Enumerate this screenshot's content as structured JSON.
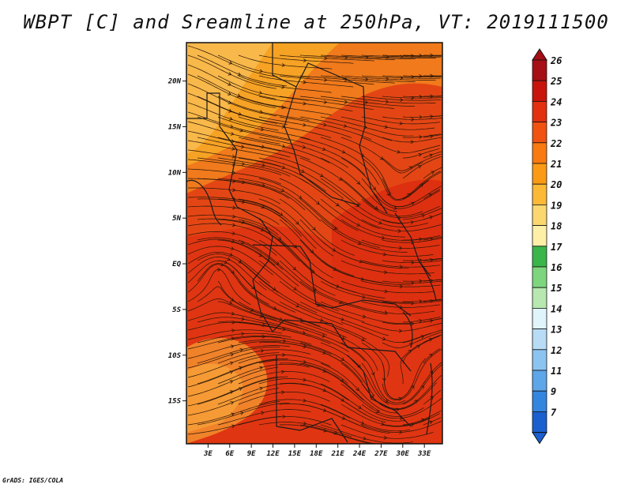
{
  "title": "WBPT [C] and Sreamline at 250hPa, VT: 2019111500",
  "credit": "GrADS: IGES/COLA",
  "map": {
    "lon_range": [
      0,
      35.5
    ],
    "lat_range": [
      -19.7,
      24.2
    ],
    "lat_ticks": [
      {
        "value": 20,
        "label": "20N"
      },
      {
        "value": 15,
        "label": "15N"
      },
      {
        "value": 10,
        "label": "10N"
      },
      {
        "value": 5,
        "label": "5N"
      },
      {
        "value": 0,
        "label": "EQ"
      },
      {
        "value": -5,
        "label": "5S"
      },
      {
        "value": -10,
        "label": "10S"
      },
      {
        "value": -15,
        "label": "15S"
      }
    ],
    "lon_ticks": [
      {
        "value": 3,
        "label": "3E"
      },
      {
        "value": 6,
        "label": "6E"
      },
      {
        "value": 9,
        "label": "9E"
      },
      {
        "value": 12,
        "label": "12E"
      },
      {
        "value": 15,
        "label": "15E"
      },
      {
        "value": 18,
        "label": "18E"
      },
      {
        "value": 21,
        "label": "21E"
      },
      {
        "value": 24,
        "label": "24E"
      },
      {
        "value": 27,
        "label": "27E"
      },
      {
        "value": 30,
        "label": "30E"
      },
      {
        "value": 33,
        "label": "33E"
      }
    ]
  },
  "colorbar": {
    "labels": [
      "26",
      "25",
      "24",
      "23",
      "22",
      "21",
      "20",
      "19",
      "18",
      "17",
      "16",
      "15",
      "14",
      "13",
      "12",
      "11",
      "9",
      "7"
    ],
    "colors": [
      "#a50f15",
      "#c8140c",
      "#e3300e",
      "#f1520f",
      "#f97a10",
      "#fb9a14",
      "#fbb936",
      "#fbd770",
      "#fdf0a6",
      "#39b54a",
      "#7dd67e",
      "#b6e8b0",
      "#e0f4fb",
      "#b8dcf6",
      "#8cc4f1",
      "#5ea6ea",
      "#3485e0",
      "#1a5fcf"
    ]
  }
}
